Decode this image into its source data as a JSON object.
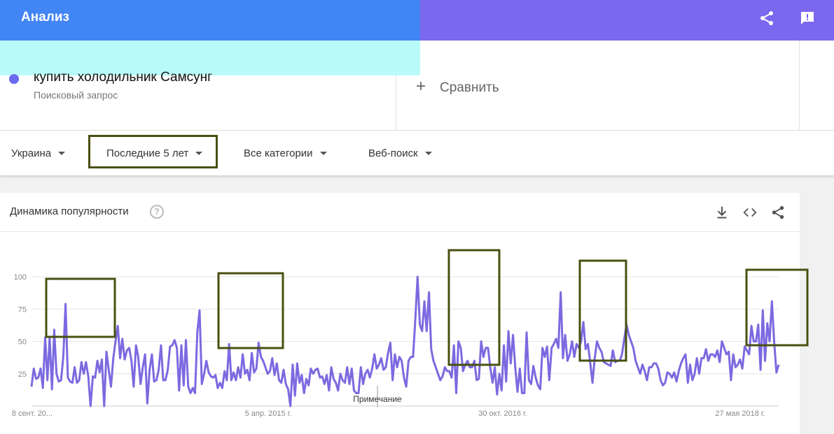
{
  "header": {
    "title": "Анализ",
    "share_icon": "share-icon",
    "feedback_icon": "feedback-icon"
  },
  "term": {
    "name": "купить холодильник Самсунг",
    "type": "Поисковый запрос",
    "color": "#6a6cf0"
  },
  "compare": {
    "plus": "+",
    "label": "Сравнить"
  },
  "filters": {
    "region": "Украина",
    "period": "Последние 5 лет",
    "category": "Все категории",
    "search_type": "Веб-поиск"
  },
  "chart_card": {
    "title": "Динамика популярности",
    "help": "?",
    "download_icon": "download-icon",
    "embed_icon": "embed-icon",
    "share_icon": "share-icon"
  },
  "chart_data": {
    "type": "line",
    "series": [
      {
        "name": "купить холодильник Самсунг",
        "color": "#7b6ae0",
        "values": [
          15,
          29,
          21,
          22,
          29,
          14,
          53,
          20,
          53,
          13,
          59,
          25,
          19,
          20,
          38,
          79,
          22,
          19,
          18,
          30,
          18,
          20,
          34,
          25,
          34,
          23,
          0,
          23,
          22,
          35,
          26,
          36,
          0,
          42,
          28,
          15,
          37,
          50,
          62,
          37,
          52,
          36,
          43,
          45,
          35,
          15,
          47,
          38,
          17,
          30,
          40,
          2,
          28,
          40,
          19,
          20,
          28,
          47,
          20,
          20,
          28,
          46,
          47,
          51,
          45,
          12,
          47,
          16,
          51,
          15,
          10,
          14,
          10,
          57,
          74,
          17,
          25,
          35,
          26,
          23,
          22,
          24,
          14,
          18,
          14,
          27,
          20,
          48,
          20,
          26,
          20,
          30,
          22,
          40,
          25,
          28,
          20,
          41,
          26,
          29,
          49,
          38,
          35,
          30,
          25,
          27,
          37,
          24,
          33,
          20,
          18,
          28,
          17,
          13,
          0,
          32,
          8,
          33,
          18,
          24,
          10,
          21,
          16,
          29,
          25,
          28,
          29,
          22,
          23,
          17,
          24,
          12,
          30,
          21,
          18,
          12,
          25,
          20,
          18,
          30,
          17,
          29,
          12,
          10,
          10,
          30,
          17,
          25,
          28,
          22,
          29,
          40,
          29,
          32,
          37,
          28,
          30,
          41,
          49,
          20,
          40,
          30,
          38,
          35,
          22,
          15,
          35,
          38,
          38,
          67,
          100,
          63,
          58,
          81,
          58,
          88,
          44,
          35,
          30,
          25,
          20,
          23,
          30,
          27,
          27,
          22,
          47,
          10,
          50,
          45,
          27,
          32,
          35,
          30,
          30,
          35,
          20,
          21,
          50,
          38,
          45,
          45,
          30,
          18,
          30,
          9,
          25,
          12,
          47,
          19,
          58,
          33,
          55,
          30,
          11,
          29,
          10,
          10,
          57,
          20,
          17,
          31,
          22,
          16,
          13,
          45,
          38,
          46,
          20,
          45,
          48,
          52,
          45,
          88,
          37,
          55,
          35,
          40,
          50,
          38,
          48,
          45,
          50,
          65,
          44,
          48,
          34,
          18,
          37,
          50,
          45,
          42,
          34,
          33,
          32,
          31,
          43,
          34,
          35,
          35,
          40,
          52,
          63,
          55,
          50,
          45,
          35,
          30,
          25,
          32,
          27,
          20,
          30,
          30,
          33,
          33,
          29,
          20,
          16,
          18,
          26,
          25,
          22,
          26,
          19,
          27,
          33,
          37,
          40,
          18,
          32,
          20,
          25,
          37,
          25,
          37,
          37,
          44,
          35,
          40,
          40,
          38,
          43,
          34,
          50,
          45,
          40,
          42,
          20,
          40,
          30,
          32,
          36,
          29,
          46,
          43,
          40,
          62,
          50,
          50,
          63,
          28,
          74,
          35,
          64,
          50,
          81,
          50,
          26,
          32
        ]
      }
    ],
    "x_labels": [
      "8 сент. 20...",
      "5 апр. 2015 г.",
      "30 окт. 2016 г.",
      "27 мая 2018 г."
    ],
    "y_ticks": [
      25,
      50,
      75,
      100
    ],
    "ylim": [
      0,
      100
    ],
    "note": "Примечание",
    "grid": true
  }
}
